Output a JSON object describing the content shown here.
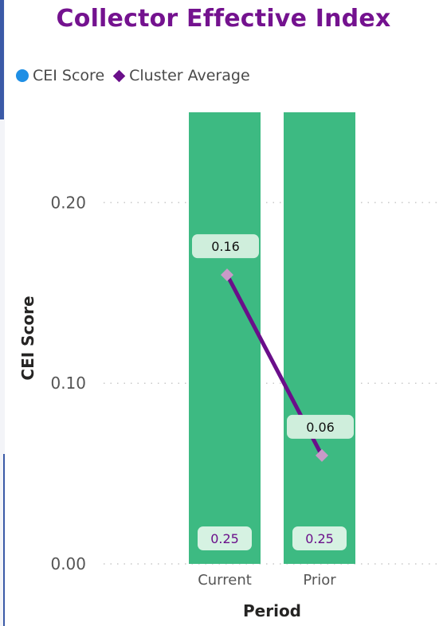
{
  "title": "Collector Effective Index",
  "colors": {
    "title": "#74128f",
    "bar": "#3dba82",
    "line": "#6a0f8a",
    "marker": "#c99ac8",
    "legend_cei": "#1f8fe5",
    "legend_cluster": "#6a0f8a",
    "label_bg_line": "#cfeedc",
    "label_bg_bar": "#d6f2e2",
    "label_text_bar": "#6a0f8a",
    "label_text_line": "#111111",
    "gridline": "#c8c8c8"
  },
  "legend": {
    "items": [
      {
        "label": "CEI Score",
        "shape": "circle-icon"
      },
      {
        "label": "Cluster Average",
        "shape": "diamond-icon"
      }
    ]
  },
  "chart_data": {
    "type": "bar",
    "categories": [
      "Current",
      "Prior"
    ],
    "series": [
      {
        "name": "CEI Score",
        "type": "bar",
        "values": [
          0.25,
          0.25
        ]
      },
      {
        "name": "Cluster Average",
        "type": "line",
        "values": [
          0.16,
          0.06
        ]
      }
    ],
    "bar_labels": [
      "0.25",
      "0.25"
    ],
    "line_labels": [
      "0.16",
      "0.06"
    ],
    "title": "Collector Effective Index",
    "xlabel": "Period",
    "ylabel": "CEI Score",
    "ylim": [
      0,
      0.25
    ],
    "yticks": [
      0.0,
      0.1,
      0.2
    ],
    "ytick_labels": [
      "0.00",
      "0.10",
      "0.20"
    ],
    "grid": true,
    "legend_position": "top-left"
  }
}
